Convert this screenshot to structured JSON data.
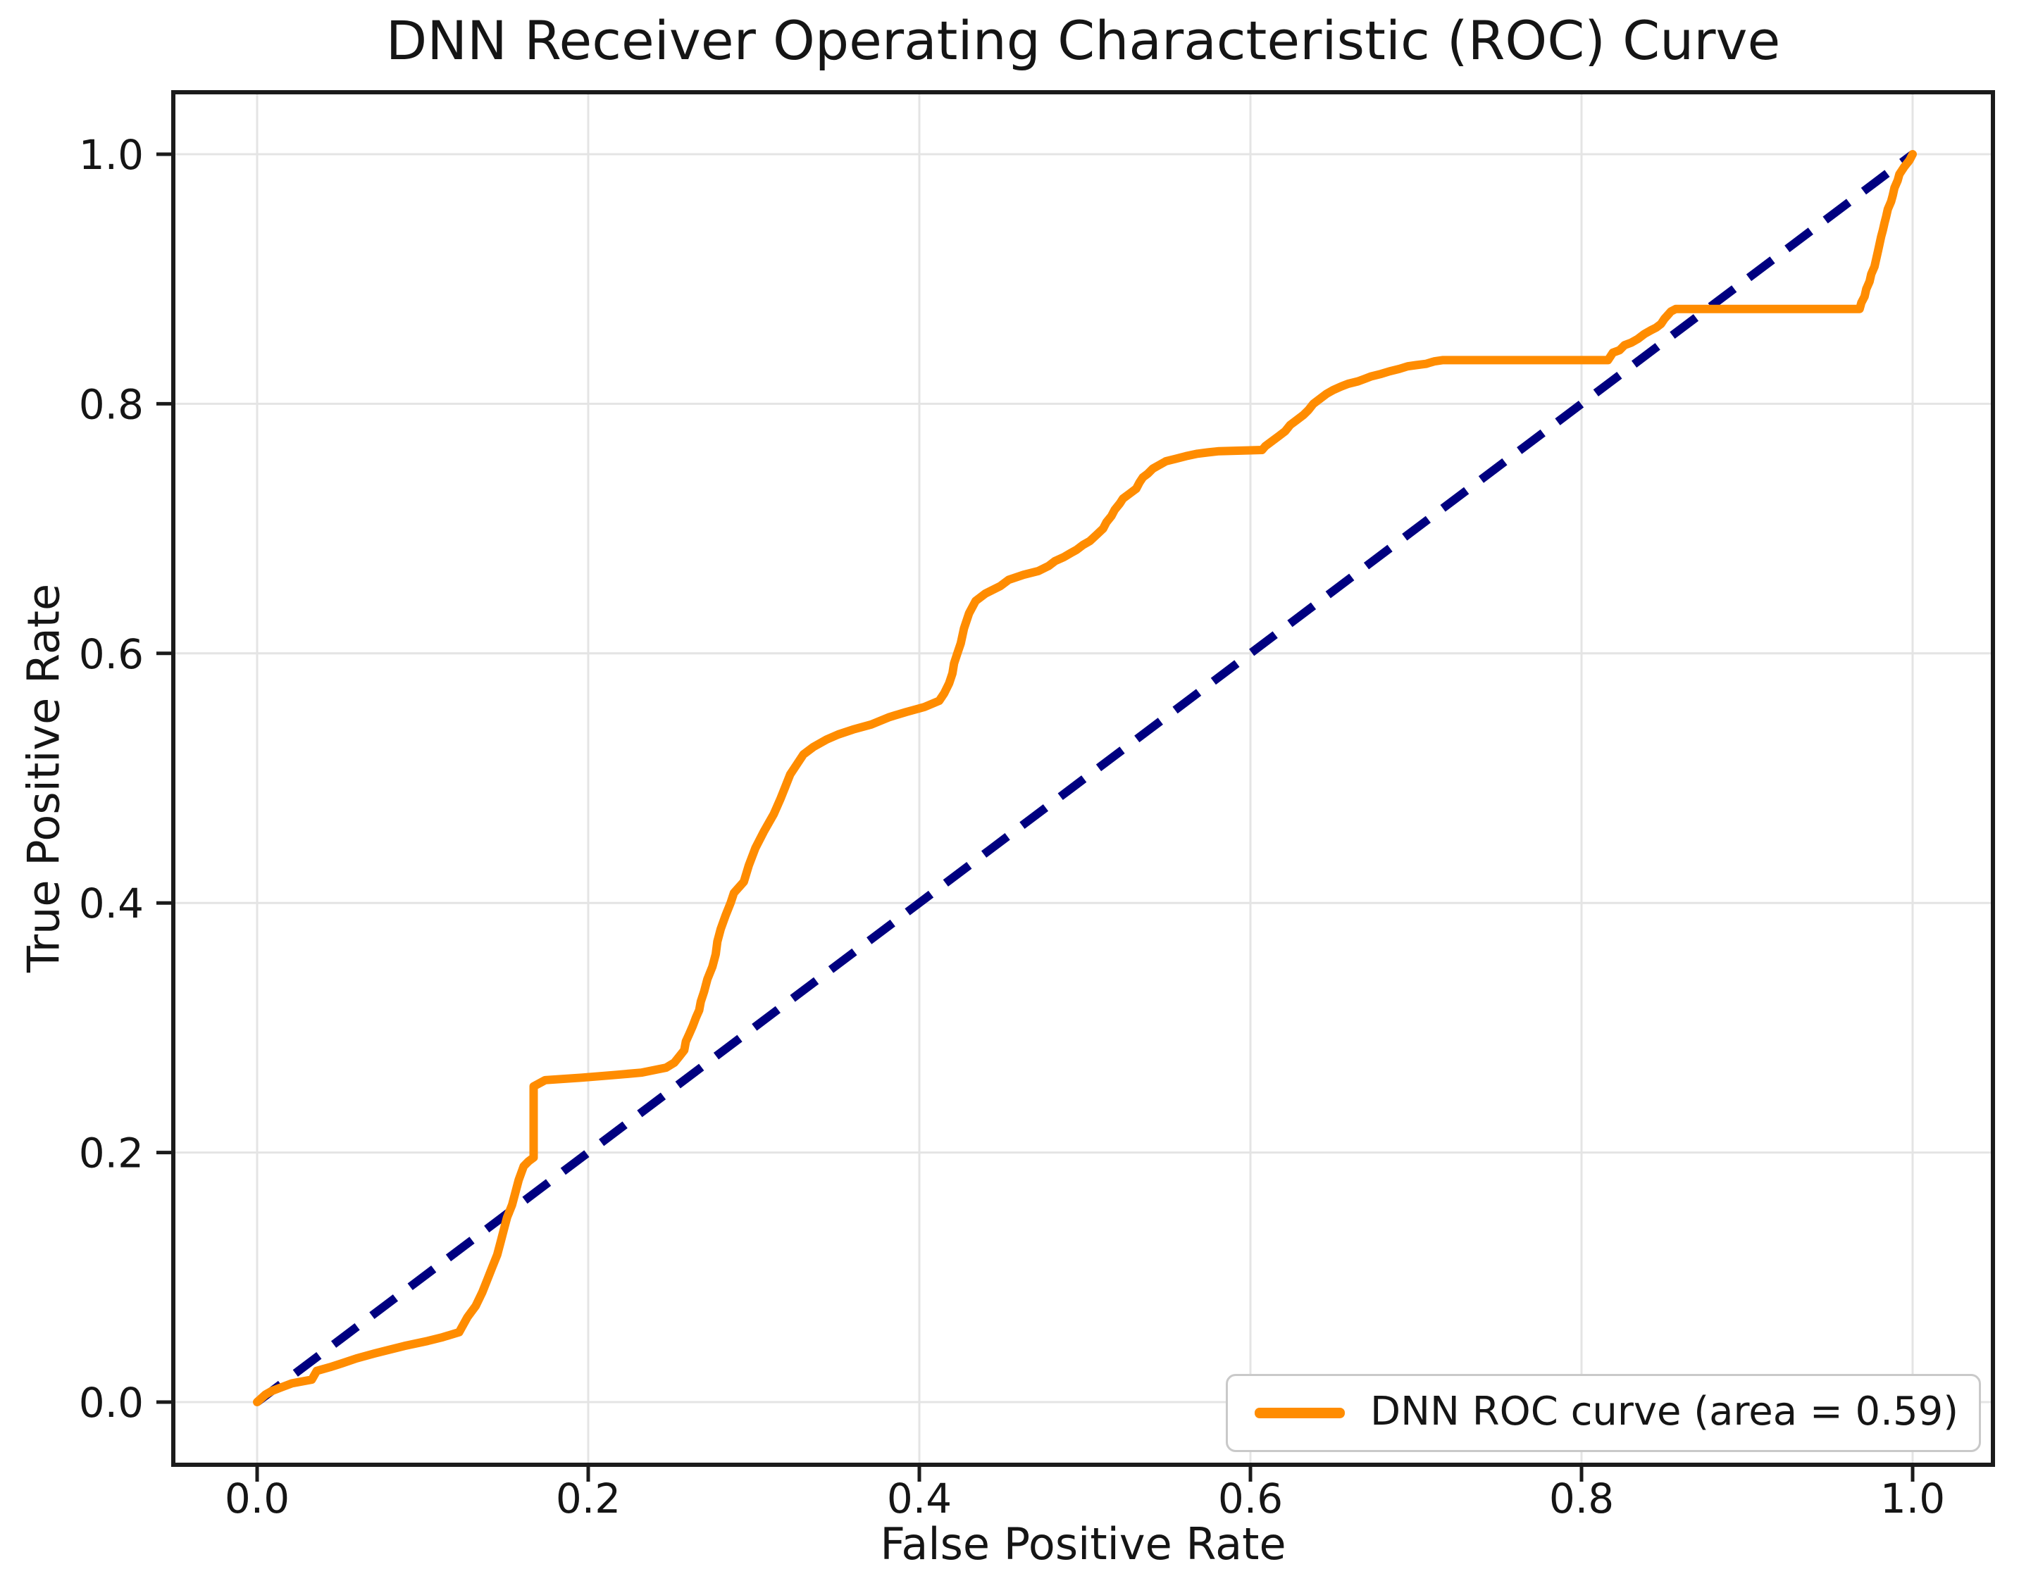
{
  "colors": {
    "curve": "#ff8c00",
    "diagonal": "#000080",
    "grid": "#e4e4e4",
    "axis": "#1b1b1b",
    "text": "#151515",
    "background": "#ffffff"
  },
  "chart_data": {
    "type": "line",
    "title": "DNN Receiver Operating Characteristic (ROC) Curve",
    "xlabel": "False Positive Rate",
    "ylabel": "True Positive Rate",
    "x_ticks": [
      "0.0",
      "0.2",
      "0.4",
      "0.6",
      "0.8",
      "1.0"
    ],
    "y_ticks": [
      "0.0",
      "0.2",
      "0.4",
      "0.6",
      "0.8",
      "1.0"
    ],
    "xlim": [
      0,
      1
    ],
    "ylim": [
      0,
      1
    ],
    "grid": true,
    "auc": 0.59,
    "legend": {
      "position": "lower right",
      "entries": [
        {
          "label": "DNN ROC curve (area = 0.59)",
          "color": "#ff8c00"
        }
      ]
    },
    "series": [
      {
        "name": "DNN ROC curve",
        "color": "#ff8c00",
        "style": "solid",
        "points": [
          [
            0.0,
            0.0
          ],
          [
            0.005,
            0.006
          ],
          [
            0.009,
            0.009
          ],
          [
            0.015,
            0.012
          ],
          [
            0.021,
            0.015
          ],
          [
            0.033,
            0.018
          ],
          [
            0.036,
            0.025
          ],
          [
            0.044,
            0.028
          ],
          [
            0.051,
            0.031
          ],
          [
            0.06,
            0.035
          ],
          [
            0.071,
            0.039
          ],
          [
            0.08,
            0.042
          ],
          [
            0.089,
            0.045
          ],
          [
            0.103,
            0.049
          ],
          [
            0.112,
            0.052
          ],
          [
            0.122,
            0.056
          ],
          [
            0.127,
            0.068
          ],
          [
            0.132,
            0.077
          ],
          [
            0.136,
            0.088
          ],
          [
            0.139,
            0.098
          ],
          [
            0.142,
            0.108
          ],
          [
            0.145,
            0.118
          ],
          [
            0.147,
            0.128
          ],
          [
            0.149,
            0.138
          ],
          [
            0.151,
            0.148
          ],
          [
            0.154,
            0.158
          ],
          [
            0.156,
            0.168
          ],
          [
            0.158,
            0.178
          ],
          [
            0.161,
            0.189
          ],
          [
            0.164,
            0.193
          ],
          [
            0.167,
            0.196
          ],
          [
            0.167,
            0.253
          ],
          [
            0.174,
            0.258
          ],
          [
            0.196,
            0.26
          ],
          [
            0.215,
            0.262
          ],
          [
            0.232,
            0.264
          ],
          [
            0.247,
            0.268
          ],
          [
            0.252,
            0.272
          ],
          [
            0.255,
            0.277
          ],
          [
            0.258,
            0.282
          ],
          [
            0.259,
            0.289
          ],
          [
            0.261,
            0.295
          ],
          [
            0.263,
            0.301
          ],
          [
            0.265,
            0.308
          ],
          [
            0.267,
            0.314
          ],
          [
            0.268,
            0.321
          ],
          [
            0.27,
            0.329
          ],
          [
            0.272,
            0.339
          ],
          [
            0.275,
            0.349
          ],
          [
            0.277,
            0.359
          ],
          [
            0.278,
            0.369
          ],
          [
            0.28,
            0.379
          ],
          [
            0.283,
            0.39
          ],
          [
            0.286,
            0.4
          ],
          [
            0.288,
            0.408
          ],
          [
            0.294,
            0.417
          ],
          [
            0.297,
            0.43
          ],
          [
            0.301,
            0.444
          ],
          [
            0.306,
            0.457
          ],
          [
            0.312,
            0.471
          ],
          [
            0.316,
            0.483
          ],
          [
            0.319,
            0.493
          ],
          [
            0.322,
            0.503
          ],
          [
            0.326,
            0.511
          ],
          [
            0.33,
            0.519
          ],
          [
            0.336,
            0.525
          ],
          [
            0.344,
            0.531
          ],
          [
            0.351,
            0.535
          ],
          [
            0.36,
            0.539
          ],
          [
            0.371,
            0.543
          ],
          [
            0.382,
            0.549
          ],
          [
            0.392,
            0.553
          ],
          [
            0.403,
            0.557
          ],
          [
            0.412,
            0.562
          ],
          [
            0.415,
            0.568
          ],
          [
            0.418,
            0.576
          ],
          [
            0.42,
            0.584
          ],
          [
            0.421,
            0.592
          ],
          [
            0.423,
            0.6
          ],
          [
            0.425,
            0.608
          ],
          [
            0.427,
            0.62
          ],
          [
            0.43,
            0.632
          ],
          [
            0.434,
            0.642
          ],
          [
            0.44,
            0.648
          ],
          [
            0.449,
            0.654
          ],
          [
            0.454,
            0.659
          ],
          [
            0.463,
            0.663
          ],
          [
            0.472,
            0.666
          ],
          [
            0.478,
            0.67
          ],
          [
            0.482,
            0.674
          ],
          [
            0.487,
            0.677
          ],
          [
            0.491,
            0.68
          ],
          [
            0.495,
            0.683
          ],
          [
            0.499,
            0.687
          ],
          [
            0.503,
            0.69
          ],
          [
            0.507,
            0.695
          ],
          [
            0.511,
            0.7
          ],
          [
            0.513,
            0.705
          ],
          [
            0.516,
            0.71
          ],
          [
            0.518,
            0.715
          ],
          [
            0.521,
            0.72
          ],
          [
            0.523,
            0.724
          ],
          [
            0.527,
            0.728
          ],
          [
            0.531,
            0.732
          ],
          [
            0.533,
            0.737
          ],
          [
            0.535,
            0.741
          ],
          [
            0.538,
            0.744
          ],
          [
            0.541,
            0.748
          ],
          [
            0.545,
            0.751
          ],
          [
            0.549,
            0.754
          ],
          [
            0.555,
            0.756
          ],
          [
            0.561,
            0.758
          ],
          [
            0.568,
            0.76
          ],
          [
            0.574,
            0.761
          ],
          [
            0.581,
            0.762
          ],
          [
            0.607,
            0.763
          ],
          [
            0.609,
            0.766
          ],
          [
            0.613,
            0.77
          ],
          [
            0.617,
            0.774
          ],
          [
            0.621,
            0.778
          ],
          [
            0.624,
            0.783
          ],
          [
            0.628,
            0.787
          ],
          [
            0.632,
            0.791
          ],
          [
            0.635,
            0.795
          ],
          [
            0.638,
            0.8
          ],
          [
            0.642,
            0.804
          ],
          [
            0.646,
            0.808
          ],
          [
            0.65,
            0.811
          ],
          [
            0.655,
            0.814
          ],
          [
            0.659,
            0.816
          ],
          [
            0.665,
            0.818
          ],
          [
            0.669,
            0.82
          ],
          [
            0.673,
            0.822
          ],
          [
            0.679,
            0.824
          ],
          [
            0.684,
            0.826
          ],
          [
            0.69,
            0.828
          ],
          [
            0.695,
            0.83
          ],
          [
            0.7,
            0.831
          ],
          [
            0.706,
            0.832
          ],
          [
            0.711,
            0.834
          ],
          [
            0.716,
            0.835
          ],
          [
            0.766,
            0.835
          ],
          [
            0.816,
            0.835
          ],
          [
            0.819,
            0.841
          ],
          [
            0.823,
            0.843
          ],
          [
            0.826,
            0.847
          ],
          [
            0.83,
            0.849
          ],
          [
            0.834,
            0.852
          ],
          [
            0.838,
            0.856
          ],
          [
            0.842,
            0.859
          ],
          [
            0.845,
            0.861
          ],
          [
            0.848,
            0.864
          ],
          [
            0.85,
            0.868
          ],
          [
            0.852,
            0.871
          ],
          [
            0.854,
            0.874
          ],
          [
            0.857,
            0.876
          ],
          [
            0.88,
            0.876
          ],
          [
            0.925,
            0.876
          ],
          [
            0.968,
            0.876
          ],
          [
            0.969,
            0.881
          ],
          [
            0.971,
            0.886
          ],
          [
            0.972,
            0.892
          ],
          [
            0.974,
            0.898
          ],
          [
            0.975,
            0.904
          ],
          [
            0.977,
            0.91
          ],
          [
            0.978,
            0.916
          ],
          [
            0.979,
            0.922
          ],
          [
            0.98,
            0.928
          ],
          [
            0.981,
            0.934
          ],
          [
            0.982,
            0.939
          ],
          [
            0.983,
            0.945
          ],
          [
            0.984,
            0.95
          ],
          [
            0.985,
            0.956
          ],
          [
            0.987,
            0.962
          ],
          [
            0.988,
            0.967
          ],
          [
            0.989,
            0.973
          ],
          [
            0.991,
            0.979
          ],
          [
            0.992,
            0.984
          ],
          [
            0.995,
            0.99
          ],
          [
            0.998,
            0.995
          ],
          [
            1.0,
            1.0
          ]
        ]
      },
      {
        "name": "chance diagonal",
        "color": "#000080",
        "style": "dashed",
        "points": [
          [
            0.0,
            0.0
          ],
          [
            1.0,
            1.0
          ]
        ]
      }
    ]
  }
}
